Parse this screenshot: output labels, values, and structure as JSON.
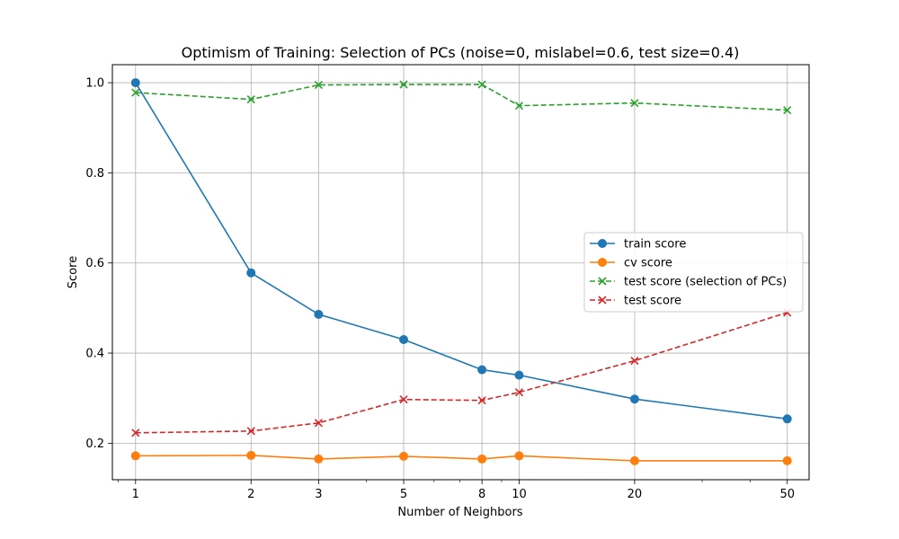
{
  "chart_data": {
    "type": "line",
    "title": "Optimism of Training: Selection of PCs (noise=0, mislabel=0.6, test size=0.4)",
    "xlabel": "Number of Neighbors",
    "ylabel": "Score",
    "xscale": "log",
    "x": [
      1,
      2,
      3,
      5,
      8,
      10,
      20,
      50
    ],
    "x_tick_labels": [
      "1",
      "2",
      "3",
      "5",
      "8",
      "10",
      "20",
      "50"
    ],
    "y_tick_labels": [
      "0.2",
      "0.4",
      "0.6",
      "0.8",
      "1.0"
    ],
    "y_ticks": [
      0.2,
      0.4,
      0.6,
      0.8,
      1.0
    ],
    "xlim": [
      0.87,
      57
    ],
    "ylim": [
      0.119,
      1.04
    ],
    "grid": true,
    "legend_position": "center-right",
    "series": [
      {
        "name": "train score",
        "color": "#1f77b4",
        "marker": "circle",
        "dash": "solid",
        "values": [
          1.0,
          0.578,
          0.486,
          0.43,
          0.363,
          0.351,
          0.298,
          0.254
        ]
      },
      {
        "name": "cv score",
        "color": "#ff7f0e",
        "marker": "circle",
        "dash": "solid",
        "values": [
          0.172,
          0.173,
          0.165,
          0.171,
          0.165,
          0.172,
          0.161,
          0.161
        ]
      },
      {
        "name": "test score (selection of PCs)",
        "color": "#2ca02c",
        "marker": "x",
        "dash": "dashed",
        "values": [
          0.978,
          0.963,
          0.995,
          0.996,
          0.996,
          0.949,
          0.955,
          0.939
        ]
      },
      {
        "name": "test score",
        "color": "#d62728",
        "marker": "x",
        "dash": "dashed",
        "values": [
          0.223,
          0.227,
          0.245,
          0.297,
          0.295,
          0.313,
          0.383,
          0.49
        ]
      }
    ]
  }
}
